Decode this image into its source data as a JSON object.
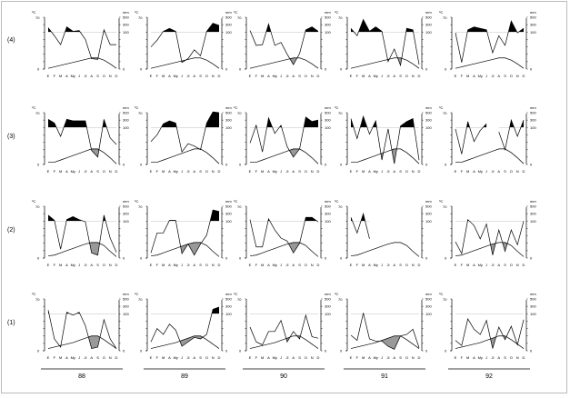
{
  "chart_data": {
    "type": "line",
    "title": "",
    "description_units": {
      "temperature": "°C",
      "precipitation": "mm"
    },
    "left_axis": {
      "label": "ºC",
      "ticks": [
        "70",
        "0"
      ],
      "range": [
        0,
        70
      ]
    },
    "right_axis": {
      "label": "mm",
      "ticks": [
        "500",
        "300",
        "100",
        "0"
      ]
    },
    "months": [
      "E",
      "F",
      "M",
      "A",
      "My",
      "J",
      "Jl",
      "A",
      "S",
      "O",
      "N",
      "D"
    ],
    "years": [
      "88",
      "89",
      "90",
      "91",
      "92"
    ],
    "rows": [
      {
        "label": "(4)",
        "temperature": [
          1,
          3,
          5,
          7,
          9,
          11,
          13,
          15,
          15,
          12,
          7,
          1
        ],
        "precipitation": [
          [
            220,
            90,
            66,
            240,
            120,
            140,
            80,
            28,
            26,
            160,
            66,
            66
          ],
          [
            60,
            78,
            120,
            200,
            120,
            18,
            28,
            52,
            36,
            120,
            340,
            280
          ],
          [
            140,
            64,
            66,
            320,
            64,
            72,
            40,
            12,
            42,
            160,
            240,
            120
          ],
          [
            200,
            90,
            440,
            120,
            240,
            120,
            20,
            54,
            10,
            200,
            160,
            12
          ],
          [
            98,
            18,
            160,
            240,
            200,
            160,
            44,
            90,
            64,
            400,
            98,
            200
          ]
        ]
      },
      {
        "label": "(3)",
        "temperature": [
          3,
          3,
          6,
          9,
          12,
          15,
          18,
          21,
          21,
          16,
          9,
          1
        ],
        "precipitation": [
          [
            320,
            220,
            76,
            320,
            280,
            280,
            280,
            38,
            20,
            320,
            72,
            54
          ],
          [
            62,
            80,
            200,
            280,
            220,
            34,
            56,
            50,
            40,
            220,
            520,
            500
          ],
          [
            58,
            160,
            34,
            360,
            84,
            160,
            48,
            20,
            42,
            380,
            260,
            300
          ],
          [
            340,
            70,
            400,
            82,
            280,
            12,
            96,
            2,
            140,
            260,
            340,
            12
          ],
          [
            96,
            28,
            260,
            62,
            92,
            200,
            null,
            88,
            40,
            300,
            76,
            300
          ]
        ]
      },
      {
        "label": "(2)",
        "temperature": [
          3,
          4,
          7,
          10,
          13,
          16,
          19,
          21,
          21,
          17,
          9,
          2
        ],
        "precipitation": [
          [
            260,
            120,
            24,
            140,
            220,
            140,
            98,
            14,
            8,
            260,
            54,
            16
          ],
          [
            14,
            68,
            68,
            120,
            120,
            12,
            38,
            8,
            38,
            62,
            400,
            360
          ],
          [
            140,
            30,
            30,
            160,
            76,
            54,
            46,
            14,
            40,
            200,
            200,
            98
          ],
          [
            200,
            68,
            300,
            52,
            null,
            null,
            null,
            null,
            null,
            null,
            null,
            null
          ],
          [
            44,
            12,
            140,
            88,
            52,
            92,
            8,
            76,
            18,
            76,
            36,
            100
          ]
        ]
      },
      {
        "label": "(1)",
        "temperature": [
          3,
          5,
          7,
          9,
          11,
          14,
          17,
          20,
          20,
          15,
          9,
          3
        ],
        "precipitation": [
          [
            200,
            32,
            10,
            140,
            96,
            140,
            68,
            6,
            10,
            84,
            32,
            6
          ],
          [
            24,
            60,
            44,
            72,
            56,
            12,
            24,
            36,
            32,
            44,
            220,
            280
          ],
          [
            64,
            24,
            16,
            52,
            52,
            82,
            24,
            52,
            32,
            96,
            38,
            34
          ],
          [
            42,
            28,
            120,
            32,
            26,
            26,
            12,
            4,
            40,
            44,
            58,
            8
          ],
          [
            28,
            14,
            86,
            58,
            44,
            82,
            6,
            64,
            30,
            66,
            16,
            84
          ]
        ]
      }
    ],
    "colors": {
      "wet": "#000000",
      "dry": "#999999",
      "line": "#000000"
    }
  }
}
